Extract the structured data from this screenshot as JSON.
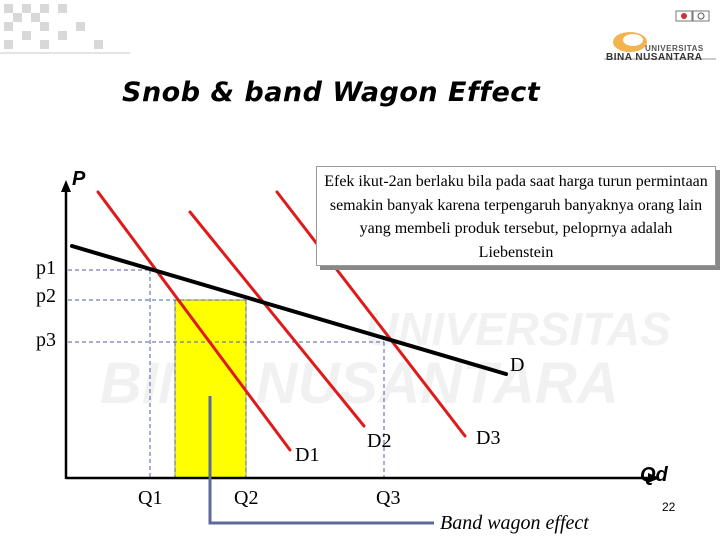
{
  "slide": {
    "title": "Snob & band Wagon Effect",
    "note": "Efek ikut-2an berlaku bila pada saat harga turun permintaan semakin banyak karena terpengaruh banyaknya orang lain yang membeli produk tersebut, peloprnya adalah Liebenstein",
    "page_number": "22"
  },
  "logo": {
    "title": "UNIVERSITAS",
    "subtitle": "BINA NUSANTARA"
  },
  "watermark": {
    "line1": "UNIVERSITAS",
    "line2": "BINA NUSANTARA"
  },
  "diagram": {
    "y_axis_label": "P",
    "x_axis_label": "Qd",
    "price_labels": {
      "p1": "p1",
      "p2": "p2",
      "p3": "p3"
    },
    "quantity_labels": {
      "q1": "Q1",
      "q2": "Q2",
      "q3": "Q3"
    },
    "curve_labels": {
      "D": "D",
      "D1": "D1",
      "D2": "D2",
      "D3": "D3"
    },
    "effect_label": "Band wagon effect",
    "colors": {
      "demand_shift": "#e01a1a",
      "market_demand": "#000000",
      "area_fill": "#ffff00",
      "guide": "#4a5fa8",
      "bracket": "#5a6a9c"
    }
  }
}
